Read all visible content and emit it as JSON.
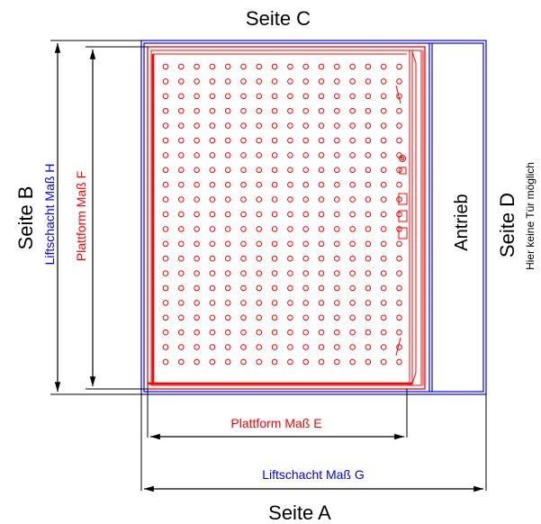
{
  "labels": {
    "side_a": "Seite A",
    "side_b": "Seite B",
    "side_c": "Seite C",
    "side_d": "Seite D",
    "side_d_note": "Hier keine Tür möglich",
    "drive": "Antrieb",
    "shaft_g": "Liftschacht Maß G",
    "shaft_h": "Liftschacht Maß H",
    "platform_e": "Plattform Maß E",
    "platform_f": "Plattform Maß F"
  },
  "colors": {
    "shaft": "#0000ff",
    "platform": "#ff0000",
    "dimension": "#000000",
    "text": "#000000"
  }
}
